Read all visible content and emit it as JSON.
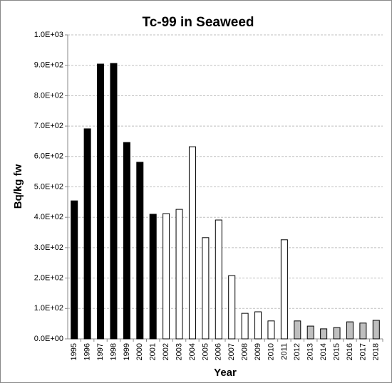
{
  "chart_data": {
    "type": "bar",
    "title": "Tc-99 in Seaweed",
    "x_label": "Year",
    "y_label": "Bq/kg fw",
    "categories": [
      "1995",
      "1996",
      "1997",
      "1998",
      "1999",
      "2000",
      "2001",
      "2002",
      "2003",
      "2004",
      "2005",
      "2006",
      "2007",
      "2008",
      "2009",
      "2010",
      "2011",
      "2012",
      "2013",
      "2014",
      "2015",
      "2016",
      "2017",
      "2018"
    ],
    "values": [
      454,
      691,
      904,
      906,
      646,
      581,
      410,
      412,
      426,
      632,
      333,
      391,
      208,
      84,
      89,
      59,
      326,
      59,
      42,
      33,
      37,
      56,
      52,
      61
    ],
    "colors": [
      "#000000",
      "#000000",
      "#000000",
      "#000000",
      "#000000",
      "#000000",
      "#000000",
      "#ffffff",
      "#ffffff",
      "#ffffff",
      "#ffffff",
      "#ffffff",
      "#ffffff",
      "#ffffff",
      "#ffffff",
      "#ffffff",
      "#ffffff",
      "#bfbfbf",
      "#bfbfbf",
      "#bfbfbf",
      "#bfbfbf",
      "#bfbfbf",
      "#bfbfbf",
      "#bfbfbf"
    ],
    "ylim": [
      0,
      1000
    ],
    "yticks": [
      {
        "value": 0,
        "label": "0.0E+00"
      },
      {
        "value": 100,
        "label": "1.0E+02"
      },
      {
        "value": 200,
        "label": "2.0E+02"
      },
      {
        "value": 300,
        "label": "3.0E+02"
      },
      {
        "value": 400,
        "label": "4.0E+02"
      },
      {
        "value": 500,
        "label": "5.0E+02"
      },
      {
        "value": 600,
        "label": "6.0E+02"
      },
      {
        "value": 700,
        "label": "7.0E+02"
      },
      {
        "value": 800,
        "label": "8.0E+02"
      },
      {
        "value": 900,
        "label": "9.0E+02"
      },
      {
        "value": 1000,
        "label": "1.0E+03"
      }
    ],
    "grid": true
  }
}
